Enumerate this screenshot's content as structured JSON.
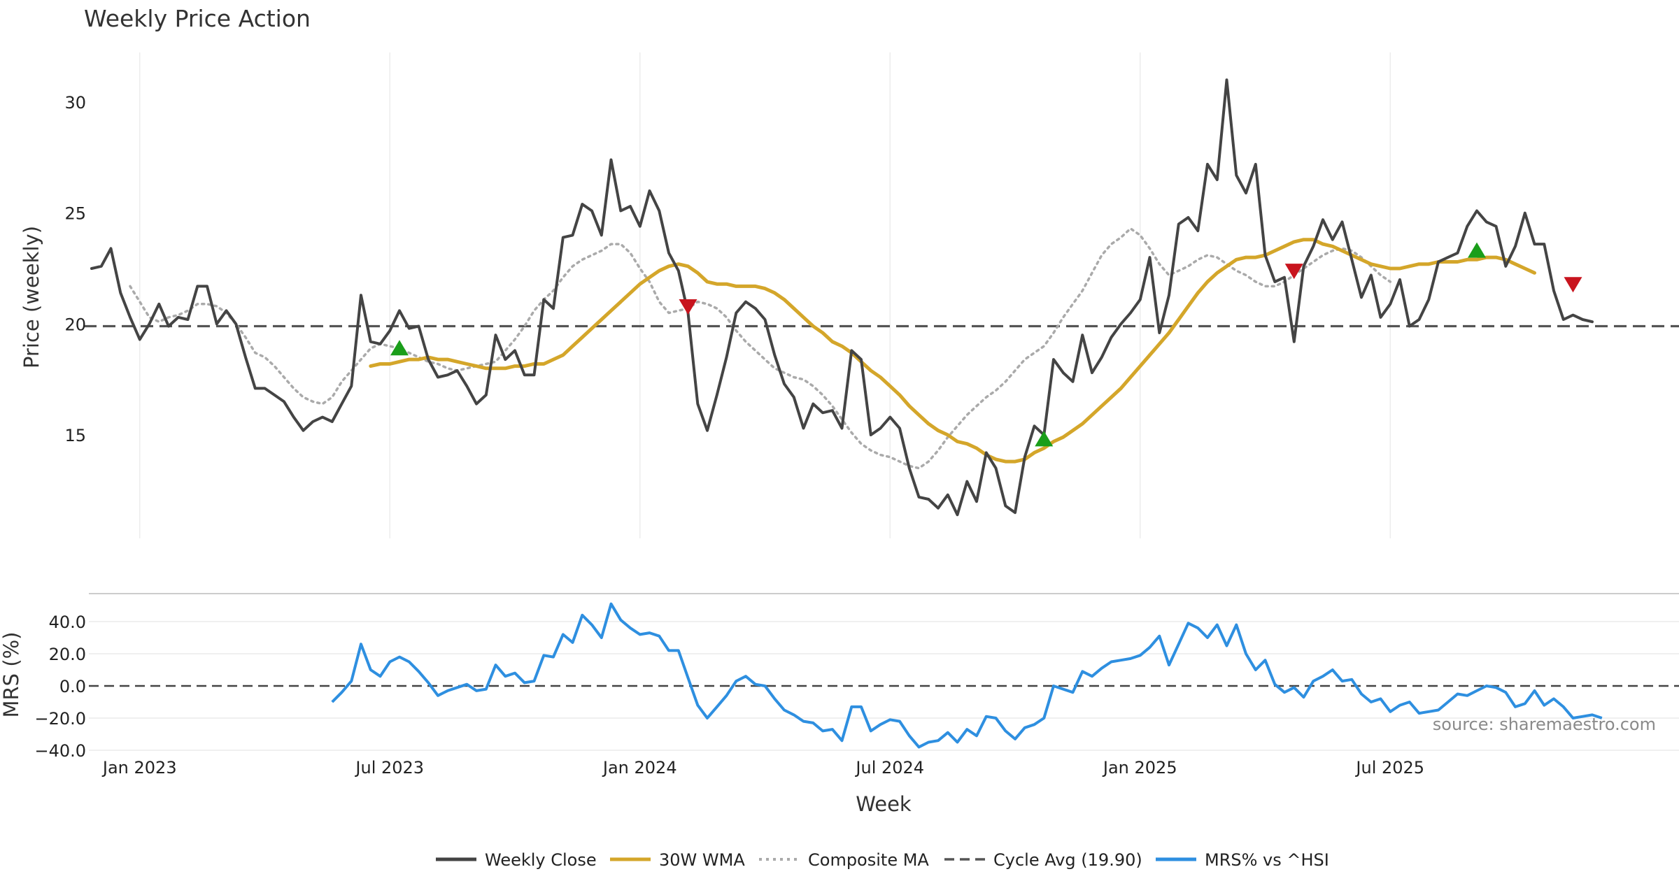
{
  "chart_data": {
    "type": "line",
    "title": "Weekly Price Action",
    "xlabel": "Week",
    "source_note": "source: sharemaestro.com",
    "x_ticks": [
      "Jan 2023",
      "Jul 2023",
      "Jan 2024",
      "Jul 2024",
      "Jan 2025",
      "Jul 2025"
    ],
    "x_tick_weeks": [
      5,
      31,
      57,
      83,
      109,
      135
    ],
    "price_panel": {
      "ylabel": "Price (weekly)",
      "ylim": [
        10.5,
        32.2
      ],
      "y_ticks": [
        "15",
        "20",
        "25",
        "30"
      ],
      "y_tick_values": [
        15,
        20,
        25,
        30
      ],
      "cycle_avg": 19.9,
      "series": [
        {
          "name": "Weekly Close",
          "color": "#444444",
          "start_week": 0,
          "values": [
            22.5,
            22.6,
            23.4,
            21.4,
            20.3,
            19.3,
            20.0,
            20.9,
            19.9,
            20.3,
            20.2,
            21.7,
            21.7,
            20.0,
            20.6,
            20.0,
            18.5,
            17.1,
            17.1,
            16.8,
            16.5,
            15.8,
            15.2,
            15.6,
            15.8,
            15.6,
            16.4,
            17.2,
            21.3,
            19.2,
            19.1,
            19.7,
            20.6,
            19.8,
            19.9,
            18.4,
            17.6,
            17.7,
            17.9,
            17.2,
            16.4,
            16.8,
            19.5,
            18.4,
            18.8,
            17.7,
            17.7,
            21.1,
            20.7,
            23.9,
            24.0,
            25.4,
            25.1,
            24.0,
            27.4,
            25.1,
            25.3,
            24.4,
            26.0,
            25.1,
            23.2,
            22.4,
            20.5,
            16.4,
            15.2,
            16.8,
            18.5,
            20.5,
            21.0,
            20.7,
            20.2,
            18.6,
            17.3,
            16.7,
            15.3,
            16.4,
            16.0,
            16.1,
            15.3,
            18.8,
            18.4,
            15.0,
            15.3,
            15.8,
            15.3,
            13.5,
            12.2,
            12.1,
            11.7,
            12.3,
            11.4,
            12.9,
            12.0,
            14.2,
            13.5,
            11.8,
            11.5,
            14.0,
            15.4,
            15.0,
            18.4,
            17.8,
            17.4,
            19.5,
            17.8,
            18.5,
            19.4,
            20.0,
            20.5,
            21.1,
            23.0,
            19.6,
            21.3,
            24.5,
            24.8,
            24.2,
            27.2,
            26.5,
            31.0,
            26.7,
            25.9,
            27.2,
            23.1,
            21.9,
            22.1,
            19.2,
            22.6,
            23.5,
            24.7,
            23.8,
            24.6,
            22.9,
            21.2,
            22.2,
            20.3,
            20.9,
            22.0,
            19.9,
            20.2,
            21.1,
            22.8,
            23.0,
            23.2,
            24.4,
            25.1,
            24.6,
            24.4,
            22.6,
            23.5,
            25.0,
            23.6,
            23.6,
            21.5,
            20.2,
            20.4,
            20.2,
            20.1
          ]
        },
        {
          "name": "30W WMA",
          "color": "#D4A62A",
          "start_week": 29,
          "values": [
            18.1,
            18.2,
            18.2,
            18.3,
            18.4,
            18.4,
            18.5,
            18.4,
            18.4,
            18.3,
            18.2,
            18.1,
            18.0,
            18.0,
            18.0,
            18.1,
            18.1,
            18.2,
            18.2,
            18.4,
            18.6,
            19.0,
            19.4,
            19.8,
            20.2,
            20.6,
            21.0,
            21.4,
            21.8,
            22.1,
            22.4,
            22.6,
            22.7,
            22.6,
            22.3,
            21.9,
            21.8,
            21.8,
            21.7,
            21.7,
            21.7,
            21.6,
            21.4,
            21.1,
            20.7,
            20.3,
            19.9,
            19.6,
            19.2,
            19.0,
            18.7,
            18.3,
            17.9,
            17.6,
            17.2,
            16.8,
            16.3,
            15.9,
            15.5,
            15.2,
            15.0,
            14.7,
            14.6,
            14.4,
            14.1,
            13.9,
            13.8,
            13.8,
            13.9,
            14.2,
            14.4,
            14.7,
            14.9,
            15.2,
            15.5,
            15.9,
            16.3,
            16.7,
            17.1,
            17.6,
            18.1,
            18.6,
            19.1,
            19.6,
            20.2,
            20.8,
            21.4,
            21.9,
            22.3,
            22.6,
            22.9,
            23.0,
            23.0,
            23.1,
            23.3,
            23.5,
            23.7,
            23.8,
            23.8,
            23.6,
            23.5,
            23.3,
            23.1,
            22.9,
            22.7,
            22.6,
            22.5,
            22.5,
            22.6,
            22.7,
            22.7,
            22.8,
            22.8,
            22.8,
            22.9,
            22.9,
            23.0,
            23.0,
            22.9,
            22.7,
            22.5,
            22.3
          ]
        },
        {
          "name": "Composite MA",
          "color": "#AAAAAA",
          "start_week": 4,
          "values": [
            21.7,
            21.0,
            20.3,
            20.1,
            20.3,
            20.4,
            20.6,
            20.9,
            20.9,
            20.8,
            20.5,
            20.0,
            19.4,
            18.7,
            18.5,
            18.1,
            17.6,
            17.1,
            16.7,
            16.5,
            16.4,
            16.7,
            17.4,
            17.9,
            18.4,
            18.9,
            19.1,
            19.0,
            18.9,
            18.7,
            18.5,
            18.3,
            18.2,
            18.0,
            17.9,
            18.0,
            18.1,
            18.2,
            18.3,
            18.8,
            19.3,
            19.9,
            20.6,
            21.1,
            21.5,
            22.1,
            22.6,
            22.9,
            23.1,
            23.3,
            23.6,
            23.6,
            23.2,
            22.5,
            21.9,
            21.0,
            20.5,
            20.6,
            20.7,
            21.0,
            20.9,
            20.7,
            20.3,
            19.7,
            19.2,
            18.8,
            18.4,
            18.0,
            17.8,
            17.6,
            17.5,
            17.2,
            16.8,
            16.3,
            15.7,
            15.1,
            14.6,
            14.3,
            14.1,
            14.0,
            13.8,
            13.6,
            13.5,
            13.8,
            14.3,
            14.9,
            15.4,
            15.9,
            16.3,
            16.7,
            17.0,
            17.4,
            17.9,
            18.4,
            18.7,
            19.0,
            19.6,
            20.3,
            20.9,
            21.5,
            22.3,
            23.1,
            23.6,
            23.9,
            24.3,
            24.0,
            23.4,
            22.7,
            22.2,
            22.4,
            22.6,
            22.9,
            23.1,
            23.0,
            22.7,
            22.4,
            22.2,
            21.9,
            21.7,
            21.7,
            21.9,
            22.2,
            22.5,
            22.8,
            23.1,
            23.3,
            23.4,
            23.3,
            23.0,
            22.6,
            22.2,
            21.9
          ]
        }
      ],
      "buy_signals": [
        {
          "week": 32,
          "price": 18.9
        },
        {
          "week": 99,
          "price": 14.8
        },
        {
          "week": 144,
          "price": 23.3
        }
      ],
      "sell_signals": [
        {
          "week": 62,
          "price": 20.8
        },
        {
          "week": 125,
          "price": 22.4
        },
        {
          "week": 154,
          "price": 21.8
        }
      ]
    },
    "mrs_panel": {
      "ylabel": "MRS (%)",
      "ylim": [
        -42,
        52
      ],
      "y_ticks": [
        "40.0",
        "20.0",
        "0.0",
        "−20.0",
        "−40.0"
      ],
      "y_tick_values": [
        40,
        20,
        0,
        -20,
        -40
      ],
      "series": {
        "name": "MRS% vs ^HSI",
        "color": "#2E8FE0",
        "start_week": 25,
        "values": [
          -10,
          -4,
          3,
          26,
          10,
          6,
          15,
          18,
          15,
          9,
          2,
          -6,
          -3,
          -1,
          1,
          -3,
          -2,
          13,
          6,
          8,
          2,
          3,
          19,
          18,
          32,
          27,
          44,
          38,
          30,
          51,
          41,
          36,
          32,
          33,
          31,
          22,
          22,
          5,
          -12,
          -20,
          -13,
          -6,
          3,
          6,
          1,
          0,
          -8,
          -15,
          -18,
          -22,
          -23,
          -28,
          -27,
          -34,
          -13,
          -13,
          -28,
          -24,
          -21,
          -22,
          -31,
          -38,
          -35,
          -34,
          -29,
          -35,
          -27,
          -31,
          -19,
          -20,
          -28,
          -33,
          -26,
          -24,
          -20,
          0,
          -2,
          -4,
          9,
          6,
          11,
          15,
          16,
          17,
          19,
          24,
          31,
          13,
          26,
          39,
          36,
          30,
          38,
          25,
          38,
          20,
          10,
          16,
          1,
          -4,
          -1,
          -7,
          3,
          6,
          10,
          3,
          4,
          -5,
          -10,
          -8,
          -16,
          -12,
          -10,
          -17,
          -16,
          -15,
          -10,
          -5,
          -6,
          -3,
          0,
          -1,
          -4,
          -13,
          -11,
          -3,
          -12,
          -8,
          -13,
          -20,
          -19,
          -18,
          -20
        ]
      }
    },
    "legend": [
      {
        "label": "Weekly Close",
        "style": "solid",
        "color": "#444444"
      },
      {
        "label": "30W WMA",
        "style": "solid",
        "color": "#D4A62A"
      },
      {
        "label": "Composite MA",
        "style": "dotted",
        "color": "#AAAAAA"
      },
      {
        "label": "Cycle Avg (19.90)",
        "style": "dashed",
        "color": "#555555"
      },
      {
        "label": "MRS% vs ^HSI",
        "style": "solid",
        "color": "#2E8FE0"
      }
    ]
  }
}
